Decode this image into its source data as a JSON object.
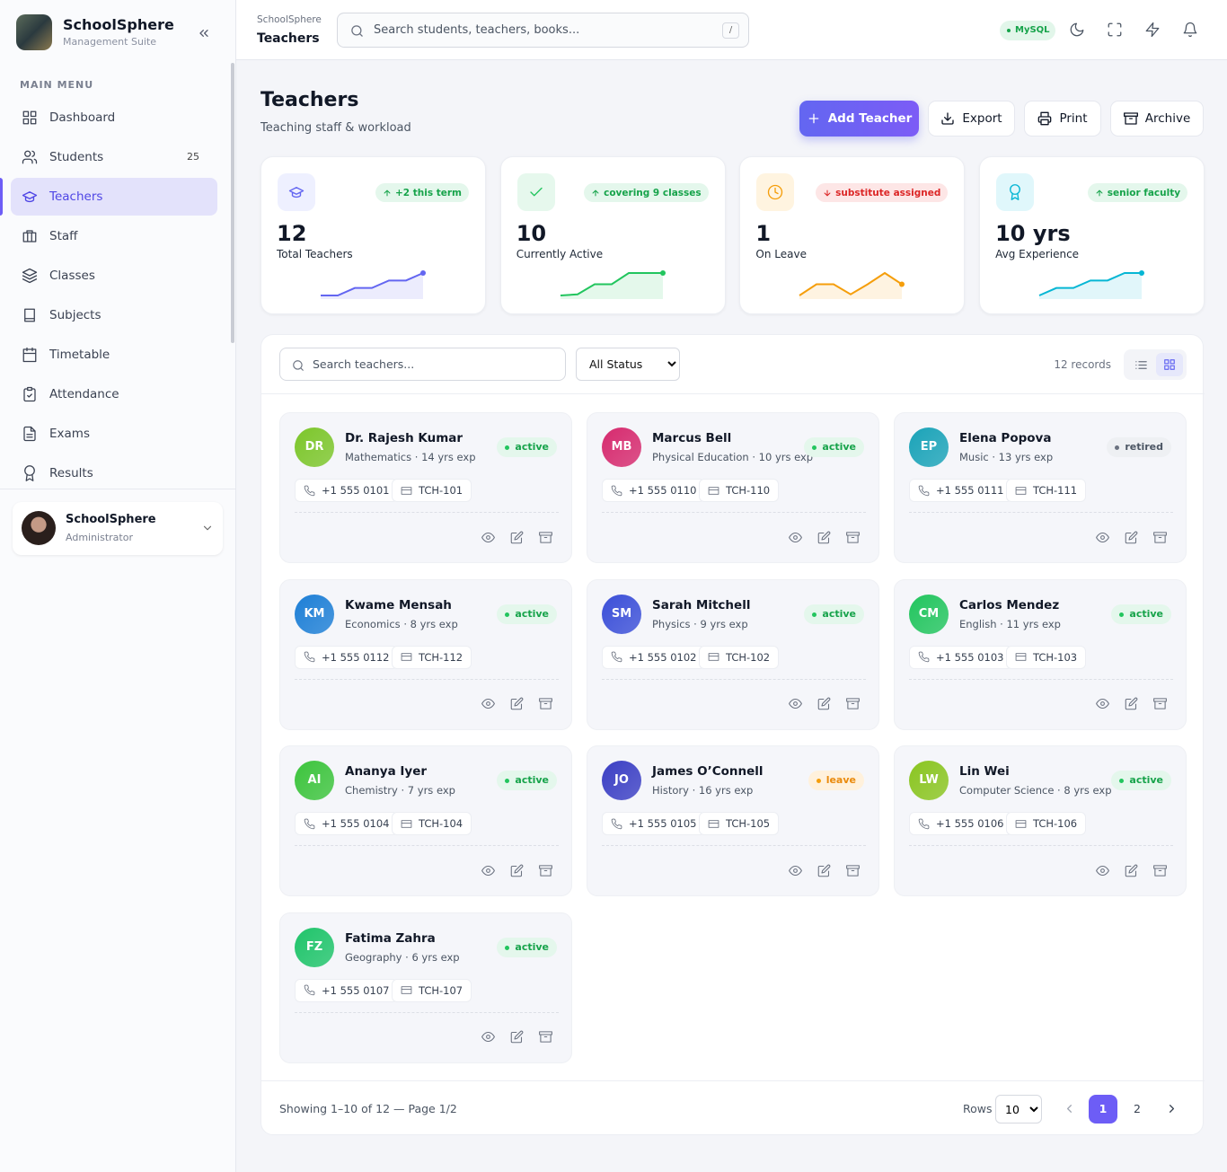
{
  "sidebar": {
    "brand": "SchoolSphere",
    "tagline": "Management Suite",
    "menu_title": "MAIN MENU",
    "menu": [
      {
        "label": "Dashboard"
      },
      {
        "label": "Students",
        "badge": 25
      },
      {
        "label": "Teachers",
        "active": true
      },
      {
        "label": "Staff"
      },
      {
        "label": "Classes"
      },
      {
        "label": "Subjects"
      },
      {
        "label": "Timetable"
      },
      {
        "label": "Attendance"
      },
      {
        "label": "Exams"
      },
      {
        "label": "Results"
      }
    ],
    "user": {
      "name": "SchoolSphere",
      "role": "Administrator"
    }
  },
  "topbar": {
    "breadcrumb": "SchoolSphere",
    "page": "Teachers",
    "search_placeholder": "Search students, teachers, books...",
    "shortcut": "/",
    "db_badge": "MySQL"
  },
  "header": {
    "title": "Teachers",
    "subtitle": "Teaching staff & workload",
    "actions": [
      "Add Teacher",
      "Export",
      "Print",
      "Archive"
    ]
  },
  "stats": [
    {
      "value": "12",
      "label": "Total Teachers",
      "trend_label": "+2 this term",
      "direction": "up",
      "color": "#6366f1",
      "trend": [
        0,
        0,
        1,
        1,
        2,
        2,
        3
      ]
    },
    {
      "value": "10",
      "label": "Currently Active",
      "trend_label": "covering 9 classes",
      "direction": "up",
      "color": "#22c55e",
      "trend": [
        0,
        0.1,
        1,
        1,
        2,
        2,
        2
      ]
    },
    {
      "value": "1",
      "label": "On Leave",
      "trend_label": "substitute assigned",
      "direction": "down",
      "color": "#f59e0b",
      "trend": [
        0,
        1,
        1,
        0.1,
        1,
        2,
        1
      ]
    },
    {
      "value": "10 yrs",
      "label": "Avg Experience",
      "trend_label": "senior faculty",
      "direction": "up",
      "color": "#06b6d4",
      "trend": [
        0,
        1,
        1,
        2,
        2,
        3,
        3
      ]
    }
  ],
  "filters": {
    "search_placeholder": "Search teachers...",
    "status_options": [
      "All Status"
    ],
    "records": "12 records"
  },
  "teachers": [
    {
      "initials": "DR",
      "name": "Dr. Rajesh Kumar",
      "meta": "Mathematics · 14 yrs exp",
      "status": "active",
      "phone": "+1 555 0101",
      "code": "TCH-101",
      "color": "#7cc62a"
    },
    {
      "initials": "MB",
      "name": "Marcus Bell",
      "meta": "Physical Education · 10 yrs exp",
      "status": "active",
      "phone": "+1 555 0110",
      "code": "TCH-110",
      "color": "#d62a6e"
    },
    {
      "initials": "EP",
      "name": "Elena Popova",
      "meta": "Music · 13 yrs exp",
      "status": "retired",
      "phone": "+1 555 0111",
      "code": "TCH-111",
      "color": "#1aa3b8"
    },
    {
      "initials": "KM",
      "name": "Kwame Mensah",
      "meta": "Economics · 8 yrs exp",
      "status": "active",
      "phone": "+1 555 0112",
      "code": "TCH-112",
      "color": "#1d7fd6"
    },
    {
      "initials": "SM",
      "name": "Sarah Mitchell",
      "meta": "Physics · 9 yrs exp",
      "status": "active",
      "phone": "+1 555 0102",
      "code": "TCH-102",
      "color": "#3b4fd8"
    },
    {
      "initials": "CM",
      "name": "Carlos Mendez",
      "meta": "English · 11 yrs exp",
      "status": "active",
      "phone": "+1 555 0103",
      "code": "TCH-103",
      "color": "#22c55e"
    },
    {
      "initials": "AI",
      "name": "Ananya Iyer",
      "meta": "Chemistry · 7 yrs exp",
      "status": "active",
      "phone": "+1 555 0104",
      "code": "TCH-104",
      "color": "#3cc43c"
    },
    {
      "initials": "JO",
      "name": "James O’Connell",
      "meta": "History · 16 yrs exp",
      "status": "leave",
      "phone": "+1 555 0105",
      "code": "TCH-105",
      "color": "#3b3fc4"
    },
    {
      "initials": "LW",
      "name": "Lin Wei",
      "meta": "Computer Science · 8 yrs exp",
      "status": "active",
      "phone": "+1 555 0106",
      "code": "TCH-106",
      "color": "#8ac520"
    },
    {
      "initials": "FZ",
      "name": "Fatima Zahra",
      "meta": "Geography · 6 yrs exp",
      "status": "active",
      "phone": "+1 555 0107",
      "code": "TCH-107",
      "color": "#1fc46a"
    }
  ],
  "footer": {
    "summary": "Showing 1–10 of 12 — Page 1/2",
    "rows_label": "Rows",
    "rows_value": "10",
    "pages": [
      "1",
      "2"
    ],
    "current_page": "1"
  }
}
